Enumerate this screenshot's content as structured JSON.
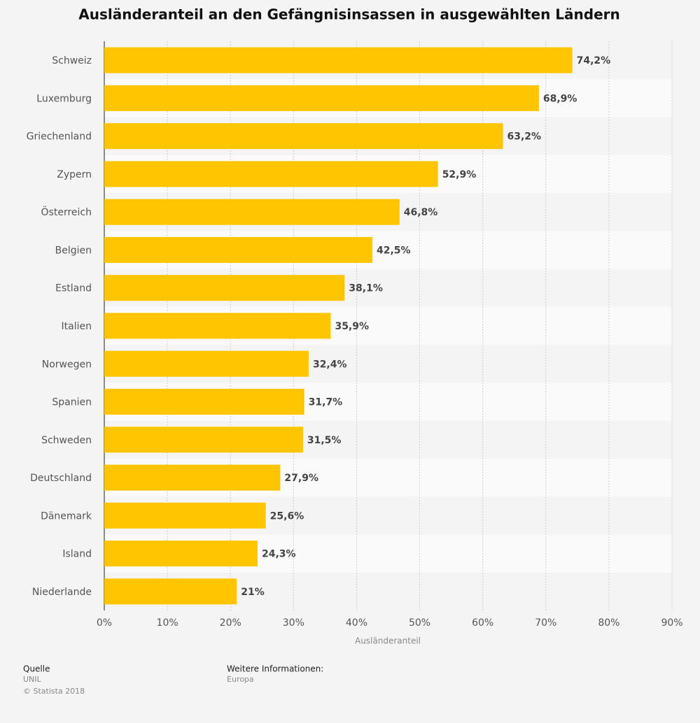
{
  "chart_data": {
    "type": "bar",
    "orientation": "horizontal",
    "title": "Ausländeranteil an den Gefängnisinsassen in ausgewählten Ländern",
    "x_label": "Ausländeranteil",
    "categories": [
      "Schweiz",
      "Luxemburg",
      "Griechenland",
      "Zypern",
      "Österreich",
      "Belgien",
      "Estland",
      "Italien",
      "Norwegen",
      "Spanien",
      "Schweden",
      "Deutschland",
      "Dänemark",
      "Island",
      "Niederlande"
    ],
    "values": [
      74.2,
      68.9,
      63.2,
      52.9,
      46.8,
      42.5,
      38.1,
      35.9,
      32.4,
      31.7,
      31.5,
      27.9,
      25.6,
      24.3,
      21
    ],
    "value_labels": [
      "74,2%",
      "68,9%",
      "63,2%",
      "52,9%",
      "46,8%",
      "42,5%",
      "38,1%",
      "35,9%",
      "32,4%",
      "31,7%",
      "31,5%",
      "27,9%",
      "25,6%",
      "24,3%",
      "21%"
    ],
    "color": "#ffc500",
    "xlim": [
      0,
      90
    ],
    "xticks": [
      {
        "value": 0,
        "label": "0%"
      },
      {
        "value": 10,
        "label": "10%"
      },
      {
        "value": 20,
        "label": "20%"
      },
      {
        "value": 30,
        "label": "30%"
      },
      {
        "value": 40,
        "label": "40%"
      },
      {
        "value": 50,
        "label": "50%"
      },
      {
        "value": 60,
        "label": "60%"
      },
      {
        "value": 70,
        "label": "70%"
      },
      {
        "value": 80,
        "label": "80%"
      },
      {
        "value": 90,
        "label": "90%"
      }
    ],
    "grid": true
  },
  "source": {
    "label": "Quelle",
    "text": "UNIL",
    "copyright": "© Statista 2018"
  },
  "info": {
    "label": "Weitere Informationen:",
    "text": "Europa"
  }
}
